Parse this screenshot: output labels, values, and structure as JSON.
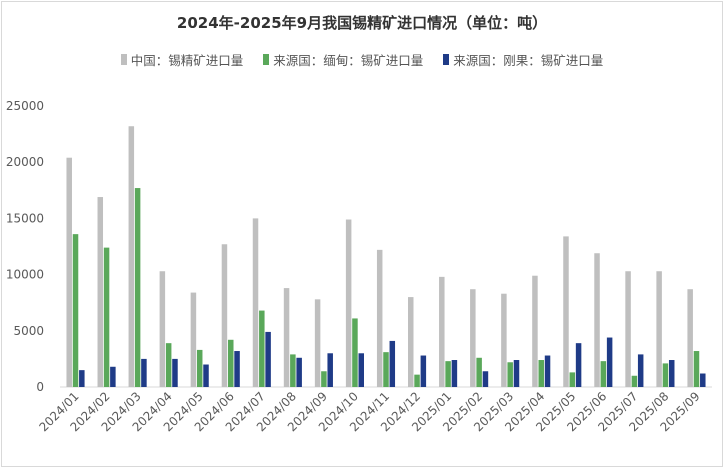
{
  "chart_data": {
    "type": "bar",
    "title": "2024年-2025年9月我国锡精矿进口情况（单位：吨）",
    "categories": [
      "2024/01",
      "2024/02",
      "2024/03",
      "2024/04",
      "2024/05",
      "2024/06",
      "2024/07",
      "2024/08",
      "2024/09",
      "2024/10",
      "2024/11",
      "2024/12",
      "2025/01",
      "2025/02",
      "2025/03",
      "2025/04",
      "2025/05",
      "2025/06",
      "2025/07",
      "2025/08",
      "2025/09"
    ],
    "ylim": [
      0,
      25000
    ],
    "yticks": [
      "0",
      "5000",
      "10000",
      "15000",
      "20000",
      "25000"
    ],
    "grid": false,
    "legend_position": "top",
    "series": [
      {
        "name": "中国：锡精矿进口量",
        "color": "#bfbfbf",
        "values": [
          20400,
          16900,
          23200,
          10300,
          8400,
          12700,
          15000,
          8800,
          7800,
          14900,
          12200,
          8000,
          9800,
          8700,
          8300,
          9900,
          13400,
          11900,
          10300,
          10300,
          8700
        ]
      },
      {
        "name": "来源国：缅甸：锡矿进口量",
        "color": "#5aa85a",
        "values": [
          13600,
          12400,
          17700,
          3900,
          3300,
          4200,
          6800,
          2900,
          1400,
          6100,
          3100,
          1100,
          2300,
          2600,
          2200,
          2400,
          1300,
          2300,
          1000,
          2100,
          3200
        ]
      },
      {
        "name": "来源国：刚果：锡矿进口量",
        "color": "#1f3b87",
        "values": [
          1500,
          1800,
          2500,
          2500,
          2000,
          3200,
          4900,
          2600,
          3000,
          3000,
          4100,
          2800,
          2400,
          1400,
          2400,
          2800,
          3900,
          4400,
          2900,
          2400,
          1200
        ]
      }
    ]
  }
}
